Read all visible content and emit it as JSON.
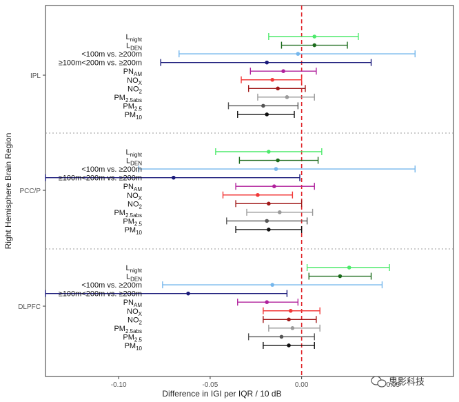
{
  "chart_data": {
    "type": "scatter",
    "subtype": "forest-plot",
    "xlabel": "Difference in IGI per IQR / 10 dB",
    "ylabel": "Right Hemisphere Brain Region",
    "xlim": [
      -0.14,
      0.083
    ],
    "x_ticks": [
      -0.1,
      -0.05,
      0.0,
      0.05
    ],
    "x_tick_labels": [
      "-0.10",
      "-0.05",
      "0.00",
      "0.05"
    ],
    "reference_line": 0,
    "grid": false,
    "exposures": [
      {
        "id": "Lnight",
        "label": "L",
        "sub": "night",
        "color": "#4dea6b"
      },
      {
        "id": "LDEN",
        "label": "L",
        "sub": "DEN",
        "color": "#1c6b1c"
      },
      {
        "id": "lt100",
        "label": "<100m vs. ≥200m",
        "sub": "",
        "color": "#74b6ec"
      },
      {
        "id": "ge100",
        "label": "≥100m<200m vs. ≥200m",
        "sub": "",
        "color": "#1a1a7a"
      },
      {
        "id": "PNAM",
        "label": "PN",
        "sub": "AM",
        "color": "#b0209c"
      },
      {
        "id": "NOX",
        "label": "NO",
        "sub": "X",
        "color": "#f23838"
      },
      {
        "id": "NO2",
        "label": "NO",
        "sub": "2",
        "color": "#a01818"
      },
      {
        "id": "PM25abs",
        "label": "PM",
        "sub": "2.5abs",
        "color": "#9a9a9a"
      },
      {
        "id": "PM25",
        "label": "PM",
        "sub": "2.5",
        "color": "#555555"
      },
      {
        "id": "PM10",
        "label": "PM",
        "sub": "10",
        "color": "#111111"
      }
    ],
    "regions": [
      {
        "name": "IPL",
        "estimates": [
          {
            "exposure": "Lnight",
            "est": 0.007,
            "lo": -0.018,
            "hi": 0.031
          },
          {
            "exposure": "LDEN",
            "est": 0.007,
            "lo": -0.011,
            "hi": 0.025
          },
          {
            "exposure": "lt100",
            "est": -0.002,
            "lo": -0.067,
            "hi": 0.062
          },
          {
            "exposure": "ge100",
            "est": -0.019,
            "lo": -0.077,
            "hi": 0.038
          },
          {
            "exposure": "PNAM",
            "est": -0.01,
            "lo": -0.028,
            "hi": 0.008
          },
          {
            "exposure": "NOX",
            "est": -0.016,
            "lo": -0.033,
            "hi": 0.0
          },
          {
            "exposure": "NO2",
            "est": -0.013,
            "lo": -0.029,
            "hi": 0.002
          },
          {
            "exposure": "PM25abs",
            "est": -0.008,
            "lo": -0.024,
            "hi": 0.007
          },
          {
            "exposure": "PM25",
            "est": -0.021,
            "lo": -0.04,
            "hi": -0.002
          },
          {
            "exposure": "PM10",
            "est": -0.019,
            "lo": -0.035,
            "hi": -0.004
          }
        ]
      },
      {
        "name": "PCC/P",
        "estimates": [
          {
            "exposure": "Lnight",
            "est": -0.018,
            "lo": -0.047,
            "hi": 0.011
          },
          {
            "exposure": "LDEN",
            "est": -0.013,
            "lo": -0.034,
            "hi": 0.009
          },
          {
            "exposure": "lt100",
            "est": -0.014,
            "lo": -0.089,
            "hi": 0.062
          },
          {
            "exposure": "ge100",
            "est": -0.07,
            "lo": -0.14,
            "hi": -0.001
          },
          {
            "exposure": "PNAM",
            "est": -0.015,
            "lo": -0.036,
            "hi": 0.007
          },
          {
            "exposure": "NOX",
            "est": -0.024,
            "lo": -0.043,
            "hi": -0.005
          },
          {
            "exposure": "NO2",
            "est": -0.018,
            "lo": -0.036,
            "hi": 0.0
          },
          {
            "exposure": "PM25abs",
            "est": -0.012,
            "lo": -0.03,
            "hi": 0.006
          },
          {
            "exposure": "PM25",
            "est": -0.019,
            "lo": -0.041,
            "hi": 0.003
          },
          {
            "exposure": "PM10",
            "est": -0.018,
            "lo": -0.036,
            "hi": 0.0
          }
        ]
      },
      {
        "name": "DLPFC",
        "estimates": [
          {
            "exposure": "Lnight",
            "est": 0.026,
            "lo": 0.003,
            "hi": 0.048
          },
          {
            "exposure": "LDEN",
            "est": 0.021,
            "lo": 0.004,
            "hi": 0.038
          },
          {
            "exposure": "lt100",
            "est": -0.016,
            "lo": -0.076,
            "hi": 0.044
          },
          {
            "exposure": "ge100",
            "est": -0.062,
            "lo": -0.14,
            "hi": -0.008
          },
          {
            "exposure": "PNAM",
            "est": -0.019,
            "lo": -0.035,
            "hi": -0.002
          },
          {
            "exposure": "NOX",
            "est": -0.006,
            "lo": -0.021,
            "hi": 0.01
          },
          {
            "exposure": "NO2",
            "est": -0.007,
            "lo": -0.021,
            "hi": 0.008
          },
          {
            "exposure": "PM25abs",
            "est": -0.005,
            "lo": -0.018,
            "hi": 0.01
          },
          {
            "exposure": "PM25",
            "est": -0.011,
            "lo": -0.029,
            "hi": 0.007
          },
          {
            "exposure": "PM10",
            "est": -0.007,
            "lo": -0.021,
            "hi": 0.007
          }
        ]
      }
    ],
    "colors": {
      "reference_line": "#e0242a",
      "panel_border": "#333333",
      "separator": "#9a9a9a"
    }
  },
  "watermark": {
    "text": "思影科技"
  }
}
